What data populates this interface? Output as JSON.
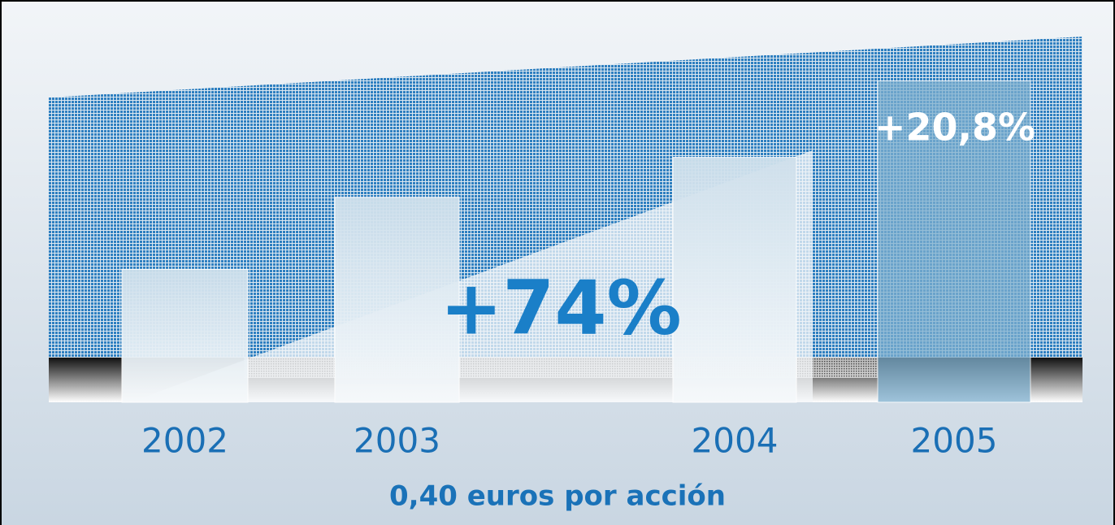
{
  "chart_data": {
    "type": "bar",
    "categories": [
      "2002",
      "2003",
      "2004",
      "2005"
    ],
    "values": [
      0.23,
      0.295,
      0.331,
      0.4
    ],
    "color": "#e4eef5",
    "ylim": [
      0.11,
      0.44
    ],
    "annotations": [
      "+74%",
      "+20,8%"
    ],
    "subtitle": "0,40 euros por acción"
  }
}
